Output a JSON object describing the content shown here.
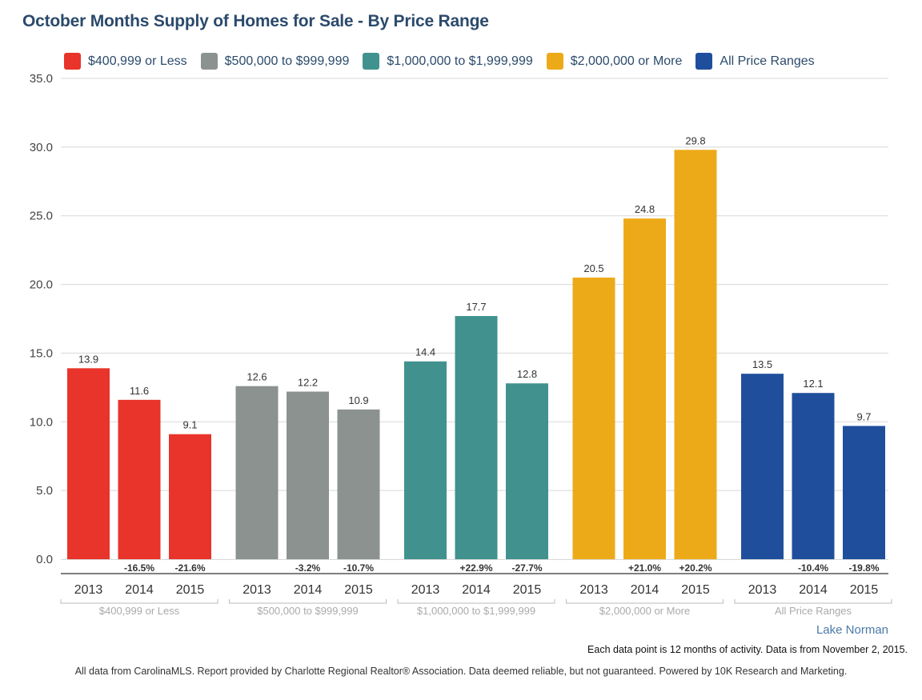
{
  "chart_data": {
    "type": "bar",
    "title": "October Months Supply of Homes for Sale - By Price Range",
    "ylim": [
      0,
      35
    ],
    "yticks": [
      "0.0",
      "5.0",
      "10.0",
      "15.0",
      "20.0",
      "25.0",
      "30.0",
      "35.0"
    ],
    "ytick_values": [
      0,
      5,
      10,
      15,
      20,
      25,
      30,
      35
    ],
    "grid": true,
    "legend_position": "top",
    "groups": [
      {
        "name": "$400,999 or Less",
        "color": "#e8342a",
        "x": [
          "2013",
          "2014",
          "2015"
        ],
        "values": [
          13.9,
          11.6,
          9.1
        ],
        "value_labels": [
          "13.9",
          "11.6",
          "9.1"
        ],
        "changes": [
          "",
          "-16.5%",
          "-21.6%"
        ]
      },
      {
        "name": "$500,000 to $999,999",
        "color": "#8c9290",
        "x": [
          "2013",
          "2014",
          "2015"
        ],
        "values": [
          12.6,
          12.2,
          10.9
        ],
        "value_labels": [
          "12.6",
          "12.2",
          "10.9"
        ],
        "changes": [
          "",
          "-3.2%",
          "-10.7%"
        ]
      },
      {
        "name": "$1,000,000 to $1,999,999",
        "color": "#41928f",
        "x": [
          "2013",
          "2014",
          "2015"
        ],
        "values": [
          14.4,
          17.7,
          12.8
        ],
        "value_labels": [
          "14.4",
          "17.7",
          "12.8"
        ],
        "changes": [
          "",
          "+22.9%",
          "-27.7%"
        ]
      },
      {
        "name": "$2,000,000 or More",
        "color": "#edaa18",
        "x": [
          "2013",
          "2014",
          "2015"
        ],
        "values": [
          20.5,
          24.8,
          29.8
        ],
        "value_labels": [
          "20.5",
          "24.8",
          "29.8"
        ],
        "changes": [
          "",
          "+21.0%",
          "+20.2%"
        ]
      },
      {
        "name": "All Price Ranges",
        "color": "#1f4f9c",
        "x": [
          "2013",
          "2014",
          "2015"
        ],
        "values": [
          13.5,
          12.1,
          9.7
        ],
        "value_labels": [
          "13.5",
          "12.1",
          "9.7"
        ],
        "changes": [
          "",
          "-10.4%",
          "-19.8%"
        ]
      }
    ]
  },
  "labels": {
    "title": "October Months Supply of Homes for Sale - By Price Range",
    "region": "Lake Norman",
    "note": "Each data point is 12 months of activity. Data is from November 2, 2015.",
    "footer": "All data from CarolinaMLS. Report provided by Charlotte Regional Realtor® Association. Data deemed reliable, but not guaranteed. Powered by 10K Research and Marketing."
  }
}
